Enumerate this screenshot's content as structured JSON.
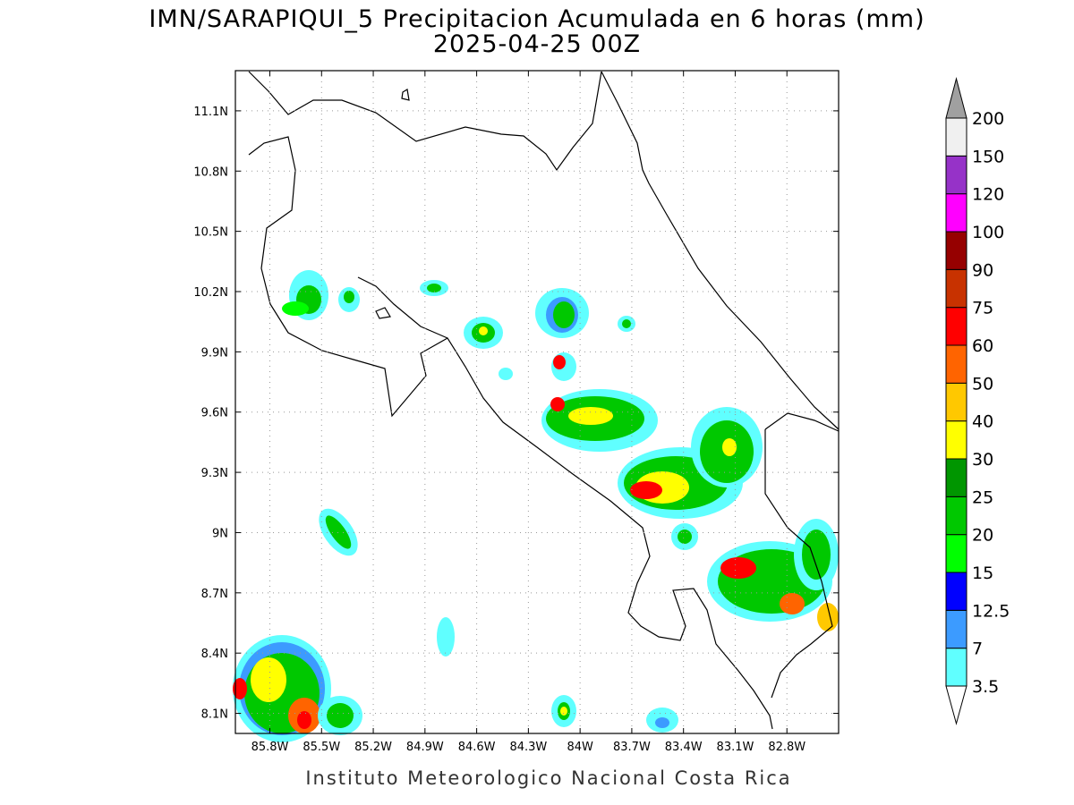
{
  "header": {
    "title": "IMN/SARAPIQUI_5 Precipitacion Acumulada en 6 horas (mm)",
    "subtitle": "2025-04-25 00Z"
  },
  "map": {
    "lon_range": [
      -86,
      -82.5
    ],
    "lat_range": [
      8,
      11.3
    ],
    "lon_ticks": [
      {
        "value": -85.8,
        "label": "85.8W"
      },
      {
        "value": -85.5,
        "label": "85.5W"
      },
      {
        "value": -85.2,
        "label": "85.2W"
      },
      {
        "value": -84.9,
        "label": "84.9W"
      },
      {
        "value": -84.6,
        "label": "84.6W"
      },
      {
        "value": -84.3,
        "label": "84.3W"
      },
      {
        "value": -84,
        "label": "84W"
      },
      {
        "value": -83.7,
        "label": "83.7W"
      },
      {
        "value": -83.4,
        "label": "83.4W"
      },
      {
        "value": -83.1,
        "label": "83.1W"
      },
      {
        "value": -82.8,
        "label": "82.8W"
      }
    ],
    "lat_ticks": [
      {
        "value": 8.1,
        "label": "8.1N"
      },
      {
        "value": 8.4,
        "label": "8.4N"
      },
      {
        "value": 8.7,
        "label": "8.7N"
      },
      {
        "value": 9,
        "label": "9N"
      },
      {
        "value": 9.3,
        "label": "9.3N"
      },
      {
        "value": 9.6,
        "label": "9.6N"
      },
      {
        "value": 9.9,
        "label": "9.9N"
      },
      {
        "value": 10.2,
        "label": "10.2N"
      },
      {
        "value": 10.5,
        "label": "10.5N"
      },
      {
        "value": 10.8,
        "label": "10.8N"
      },
      {
        "value": 11.1,
        "label": "11.1N"
      }
    ]
  },
  "colorbar": {
    "levels": [
      3.5,
      7,
      12.5,
      15,
      20,
      25,
      30,
      40,
      50,
      60,
      75,
      90,
      100,
      120,
      150,
      200
    ],
    "colors": [
      "#60ffff",
      "#3c9bff",
      "#0000ff",
      "#00ff00",
      "#00c800",
      "#009600",
      "#ffff00",
      "#ffc800",
      "#ff6400",
      "#ff0000",
      "#c83200",
      "#960000",
      "#ff00ff",
      "#9632c8",
      "#f0f0f0"
    ],
    "under_color": "#ffffff",
    "over_color": "#a0a0a0"
  },
  "footer": "Instituto Meteorologico Nacional Costa Rica"
}
